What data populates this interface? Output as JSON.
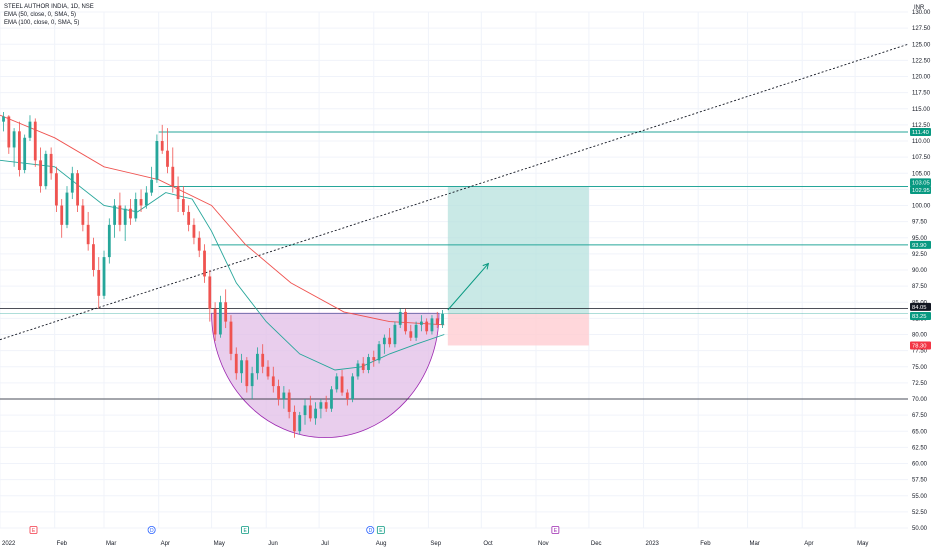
{
  "legend": {
    "title": "STEEL AUTHOR INDIA, 1D, NSE",
    "ema50": "EMA (50, close, 0, SMA, 5)",
    "ema100": "EMA (100, close, 0, SMA, 5)"
  },
  "colors": {
    "up": "#26a69a",
    "down": "#ef5350",
    "ema50": "#26a69a",
    "ema100": "#ef5350",
    "cup_fill": "#e1bee7",
    "profit_zone": "#b2dfdb",
    "loss_zone": "#ffcdd2",
    "level_line": "#26a69a",
    "black_line": "#131722",
    "label_green": "#089981",
    "label_red": "#f23645",
    "label_black": "#131722"
  },
  "chart_data": {
    "type": "candlestick",
    "currency": "INR",
    "x_axis": {
      "labels": [
        "2022",
        "Feb",
        "Mar",
        "Apr",
        "May",
        "Jun",
        "Jul",
        "Aug",
        "Sep",
        "Oct",
        "Nov",
        "Dec",
        "2023",
        "Feb",
        "Mar",
        "Apr",
        "May"
      ],
      "range": [
        "2022-01-01",
        "2023-05-31"
      ]
    },
    "y_axis": {
      "range": [
        50,
        130
      ],
      "ticks": [
        "50.00",
        "52.50",
        "55.00",
        "57.50",
        "60.00",
        "62.50",
        "65.00",
        "67.50",
        "70.00",
        "72.50",
        "75.00",
        "77.50",
        "80.00",
        "82.50",
        "85.00",
        "87.50",
        "90.00",
        "92.50",
        "95.00",
        "97.50",
        "100.00",
        "102.50",
        "105.00",
        "107.50",
        "110.00",
        "112.50",
        "115.00",
        "117.50",
        "120.00",
        "122.50",
        "125.00",
        "127.50",
        "130.00"
      ]
    },
    "candles": [
      {
        "d": "2022-01-03",
        "o": 113.0,
        "h": 114.5,
        "l": 111.5,
        "c": 113.8
      },
      {
        "d": "2022-01-06",
        "o": 113.8,
        "h": 114.0,
        "l": 108.0,
        "c": 109.0
      },
      {
        "d": "2022-01-09",
        "o": 109.0,
        "h": 112.0,
        "l": 106.0,
        "c": 111.5
      },
      {
        "d": "2022-01-12",
        "o": 111.5,
        "h": 113.0,
        "l": 104.5,
        "c": 105.5
      },
      {
        "d": "2022-01-15",
        "o": 105.5,
        "h": 111.0,
        "l": 105.0,
        "c": 110.5
      },
      {
        "d": "2022-01-18",
        "o": 110.5,
        "h": 114.0,
        "l": 110.0,
        "c": 113.0
      },
      {
        "d": "2022-01-21",
        "o": 113.0,
        "h": 113.5,
        "l": 106.0,
        "c": 107.0
      },
      {
        "d": "2022-01-24",
        "o": 107.0,
        "h": 109.0,
        "l": 102.0,
        "c": 103.0
      },
      {
        "d": "2022-01-27",
        "o": 103.0,
        "h": 108.5,
        "l": 102.5,
        "c": 108.0
      },
      {
        "d": "2022-01-30",
        "o": 108.0,
        "h": 109.0,
        "l": 104.0,
        "c": 105.0
      },
      {
        "d": "2022-02-02",
        "o": 105.0,
        "h": 106.0,
        "l": 99.0,
        "c": 100.0
      },
      {
        "d": "2022-02-05",
        "o": 100.0,
        "h": 101.0,
        "l": 95.0,
        "c": 97.0
      },
      {
        "d": "2022-02-08",
        "o": 97.0,
        "h": 103.0,
        "l": 96.5,
        "c": 102.0
      },
      {
        "d": "2022-02-11",
        "o": 102.0,
        "h": 106.0,
        "l": 101.0,
        "c": 105.0
      },
      {
        "d": "2022-02-14",
        "o": 105.0,
        "h": 105.5,
        "l": 99.0,
        "c": 100.0
      },
      {
        "d": "2022-02-17",
        "o": 100.0,
        "h": 101.0,
        "l": 96.0,
        "c": 97.0
      },
      {
        "d": "2022-02-20",
        "o": 97.0,
        "h": 99.0,
        "l": 93.0,
        "c": 94.0
      },
      {
        "d": "2022-02-23",
        "o": 94.0,
        "h": 95.0,
        "l": 89.0,
        "c": 90.0
      },
      {
        "d": "2022-02-26",
        "o": 90.0,
        "h": 92.0,
        "l": 84.0,
        "c": 86.0
      },
      {
        "d": "2022-03-01",
        "o": 86.0,
        "h": 93.0,
        "l": 85.5,
        "c": 92.0
      },
      {
        "d": "2022-03-04",
        "o": 92.0,
        "h": 98.0,
        "l": 91.0,
        "c": 97.0
      },
      {
        "d": "2022-03-07",
        "o": 97.0,
        "h": 101.0,
        "l": 95.0,
        "c": 100.0
      },
      {
        "d": "2022-03-10",
        "o": 100.0,
        "h": 102.0,
        "l": 96.0,
        "c": 97.0
      },
      {
        "d": "2022-03-13",
        "o": 97.0,
        "h": 100.0,
        "l": 94.5,
        "c": 99.5
      },
      {
        "d": "2022-03-16",
        "o": 99.5,
        "h": 101.0,
        "l": 97.0,
        "c": 98.0
      },
      {
        "d": "2022-03-19",
        "o": 98.0,
        "h": 102.0,
        "l": 97.5,
        "c": 101.0
      },
      {
        "d": "2022-03-22",
        "o": 101.0,
        "h": 102.5,
        "l": 99.0,
        "c": 100.0
      },
      {
        "d": "2022-03-25",
        "o": 100.0,
        "h": 103.0,
        "l": 99.5,
        "c": 102.0
      },
      {
        "d": "2022-03-28",
        "o": 102.0,
        "h": 106.0,
        "l": 101.5,
        "c": 104.0
      },
      {
        "d": "2022-03-31",
        "o": 104.0,
        "h": 111.0,
        "l": 103.5,
        "c": 110.0
      },
      {
        "d": "2022-04-03",
        "o": 110.0,
        "h": 112.5,
        "l": 108.0,
        "c": 108.5
      },
      {
        "d": "2022-04-06",
        "o": 108.5,
        "h": 112.0,
        "l": 105.0,
        "c": 106.0
      },
      {
        "d": "2022-04-09",
        "o": 106.0,
        "h": 109.0,
        "l": 102.0,
        "c": 103.0
      },
      {
        "d": "2022-04-12",
        "o": 103.0,
        "h": 104.5,
        "l": 99.0,
        "c": 101.0
      },
      {
        "d": "2022-04-15",
        "o": 101.0,
        "h": 103.0,
        "l": 98.5,
        "c": 99.0
      },
      {
        "d": "2022-04-18",
        "o": 99.0,
        "h": 100.0,
        "l": 96.0,
        "c": 97.0
      },
      {
        "d": "2022-04-21",
        "o": 97.0,
        "h": 98.0,
        "l": 94.0,
        "c": 95.0
      },
      {
        "d": "2022-04-24",
        "o": 95.0,
        "h": 96.0,
        "l": 92.0,
        "c": 93.0
      },
      {
        "d": "2022-04-27",
        "o": 93.0,
        "h": 94.0,
        "l": 88.0,
        "c": 89.0
      },
      {
        "d": "2022-04-30",
        "o": 89.0,
        "h": 90.0,
        "l": 82.0,
        "c": 84.0
      },
      {
        "d": "2022-05-03",
        "o": 84.0,
        "h": 85.0,
        "l": 79.0,
        "c": 80.0
      },
      {
        "d": "2022-05-06",
        "o": 80.0,
        "h": 86.0,
        "l": 79.5,
        "c": 85.0
      },
      {
        "d": "2022-05-09",
        "o": 85.0,
        "h": 87.0,
        "l": 81.0,
        "c": 82.0
      },
      {
        "d": "2022-05-12",
        "o": 82.0,
        "h": 83.0,
        "l": 76.0,
        "c": 77.0
      },
      {
        "d": "2022-05-15",
        "o": 77.0,
        "h": 78.0,
        "l": 73.0,
        "c": 74.0
      },
      {
        "d": "2022-05-18",
        "o": 74.0,
        "h": 77.0,
        "l": 72.5,
        "c": 76.0
      },
      {
        "d": "2022-05-21",
        "o": 76.0,
        "h": 76.5,
        "l": 71.0,
        "c": 72.0
      },
      {
        "d": "2022-05-24",
        "o": 72.0,
        "h": 75.0,
        "l": 70.0,
        "c": 74.0
      },
      {
        "d": "2022-05-27",
        "o": 74.0,
        "h": 78.0,
        "l": 73.0,
        "c": 77.0
      },
      {
        "d": "2022-05-30",
        "o": 77.0,
        "h": 78.5,
        "l": 74.0,
        "c": 75.0
      },
      {
        "d": "2022-06-02",
        "o": 75.0,
        "h": 76.0,
        "l": 73.0,
        "c": 73.5
      },
      {
        "d": "2022-06-05",
        "o": 73.5,
        "h": 75.0,
        "l": 71.0,
        "c": 72.0
      },
      {
        "d": "2022-06-08",
        "o": 72.0,
        "h": 73.0,
        "l": 69.0,
        "c": 70.0
      },
      {
        "d": "2022-06-11",
        "o": 70.0,
        "h": 72.0,
        "l": 68.5,
        "c": 71.0
      },
      {
        "d": "2022-06-14",
        "o": 71.0,
        "h": 71.5,
        "l": 67.0,
        "c": 68.0
      },
      {
        "d": "2022-06-17",
        "o": 68.0,
        "h": 69.0,
        "l": 64.0,
        "c": 65.0
      },
      {
        "d": "2022-06-20",
        "o": 65.0,
        "h": 68.0,
        "l": 64.5,
        "c": 67.5
      },
      {
        "d": "2022-06-23",
        "o": 67.5,
        "h": 70.0,
        "l": 66.0,
        "c": 69.0
      },
      {
        "d": "2022-06-26",
        "o": 69.0,
        "h": 70.5,
        "l": 66.5,
        "c": 67.0
      },
      {
        "d": "2022-06-29",
        "o": 67.0,
        "h": 69.5,
        "l": 66.0,
        "c": 68.5
      },
      {
        "d": "2022-07-02",
        "o": 68.5,
        "h": 70.0,
        "l": 67.0,
        "c": 69.5
      },
      {
        "d": "2022-07-05",
        "o": 69.5,
        "h": 70.5,
        "l": 68.0,
        "c": 68.5
      },
      {
        "d": "2022-07-08",
        "o": 68.5,
        "h": 72.0,
        "l": 68.0,
        "c": 71.5
      },
      {
        "d": "2022-07-11",
        "o": 71.5,
        "h": 74.0,
        "l": 71.0,
        "c": 73.5
      },
      {
        "d": "2022-07-14",
        "o": 73.5,
        "h": 74.5,
        "l": 70.5,
        "c": 71.0
      },
      {
        "d": "2022-07-17",
        "o": 71.0,
        "h": 71.5,
        "l": 69.0,
        "c": 70.0
      },
      {
        "d": "2022-07-20",
        "o": 70.0,
        "h": 74.0,
        "l": 69.5,
        "c": 73.5
      },
      {
        "d": "2022-07-23",
        "o": 73.5,
        "h": 76.0,
        "l": 73.0,
        "c": 75.5
      },
      {
        "d": "2022-07-26",
        "o": 75.5,
        "h": 76.5,
        "l": 74.0,
        "c": 74.5
      },
      {
        "d": "2022-07-29",
        "o": 74.5,
        "h": 77.0,
        "l": 74.0,
        "c": 76.5
      },
      {
        "d": "2022-08-01",
        "o": 76.5,
        "h": 77.5,
        "l": 75.0,
        "c": 76.0
      },
      {
        "d": "2022-08-04",
        "o": 76.0,
        "h": 79.0,
        "l": 75.5,
        "c": 78.5
      },
      {
        "d": "2022-08-07",
        "o": 78.5,
        "h": 80.0,
        "l": 77.0,
        "c": 79.5
      },
      {
        "d": "2022-08-10",
        "o": 79.5,
        "h": 81.0,
        "l": 78.0,
        "c": 78.5
      },
      {
        "d": "2022-08-13",
        "o": 78.5,
        "h": 82.0,
        "l": 78.0,
        "c": 81.5
      },
      {
        "d": "2022-08-16",
        "o": 81.5,
        "h": 84.0,
        "l": 81.0,
        "c": 83.5
      },
      {
        "d": "2022-08-19",
        "o": 83.5,
        "h": 84.0,
        "l": 80.0,
        "c": 80.5
      },
      {
        "d": "2022-08-22",
        "o": 80.5,
        "h": 81.5,
        "l": 79.0,
        "c": 79.5
      },
      {
        "d": "2022-08-25",
        "o": 79.5,
        "h": 82.0,
        "l": 79.0,
        "c": 81.5
      },
      {
        "d": "2022-08-28",
        "o": 81.5,
        "h": 83.0,
        "l": 80.5,
        "c": 82.0
      },
      {
        "d": "2022-08-31",
        "o": 82.0,
        "h": 82.5,
        "l": 80.0,
        "c": 80.5
      },
      {
        "d": "2022-09-03",
        "o": 80.5,
        "h": 83.0,
        "l": 80.0,
        "c": 82.5
      },
      {
        "d": "2022-09-06",
        "o": 82.5,
        "h": 83.5,
        "l": 81.0,
        "c": 81.5
      },
      {
        "d": "2022-09-09",
        "o": 81.5,
        "h": 83.8,
        "l": 81.0,
        "c": 83.2
      }
    ],
    "ema50": [
      [
        "2022-01-01",
        107.0
      ],
      [
        "2022-02-01",
        106.0
      ],
      [
        "2022-03-01",
        100.0
      ],
      [
        "2022-03-20",
        99.0
      ],
      [
        "2022-04-05",
        102.0
      ],
      [
        "2022-04-20",
        101.0
      ],
      [
        "2022-05-01",
        96.0
      ],
      [
        "2022-05-15",
        88.0
      ],
      [
        "2022-06-01",
        82.0
      ],
      [
        "2022-06-20",
        77.0
      ],
      [
        "2022-07-10",
        74.5
      ],
      [
        "2022-07-25",
        75.0
      ],
      [
        "2022-08-10",
        77.0
      ],
      [
        "2022-08-25",
        78.5
      ],
      [
        "2022-09-10",
        80.0
      ]
    ],
    "ema100": [
      [
        "2022-01-01",
        114.0
      ],
      [
        "2022-02-01",
        110.5
      ],
      [
        "2022-03-01",
        106.0
      ],
      [
        "2022-04-01",
        104.0
      ],
      [
        "2022-05-01",
        100.0
      ],
      [
        "2022-05-20",
        94.0
      ],
      [
        "2022-06-15",
        88.0
      ],
      [
        "2022-07-15",
        83.5
      ],
      [
        "2022-08-10",
        82.0
      ],
      [
        "2022-09-10",
        81.5
      ]
    ],
    "annotations": {
      "levels": [
        {
          "price": 111.4,
          "label": "111.40",
          "color": "green"
        },
        {
          "price": 103.05,
          "label": "103.05",
          "color": "green"
        },
        {
          "price": 102.95,
          "label": "102.95",
          "color": "green"
        },
        {
          "price": 93.9,
          "label": "93.90",
          "color": "green"
        },
        {
          "price": 84.05,
          "label": "84.05",
          "color": "black"
        },
        {
          "price": 83.25,
          "label": "83.25",
          "color": "green"
        },
        {
          "price": 78.3,
          "label": "78.30",
          "color": "red"
        }
      ],
      "black_lines": [
        84.05,
        70.0
      ],
      "trendline": {
        "from": [
          "2022-01-01",
          79.2
        ],
        "to": [
          "2023-05-31",
          125.0
        ]
      },
      "cup_top_price": 83.3,
      "cup_bottom_price": 64.0,
      "cup_span": [
        "2022-05-01",
        "2022-09-07"
      ],
      "long_position": {
        "start": "2022-09-12",
        "end": "2022-12-01",
        "entry": 83.25,
        "target": 102.95,
        "stop": 78.3
      },
      "arrow": {
        "from": [
          "2022-09-12",
          83.8
        ],
        "to": [
          "2022-10-05",
          91.0
        ]
      },
      "events": [
        {
          "date": "2022-01-20",
          "letter": "E",
          "color": "red"
        },
        {
          "date": "2022-03-28",
          "letter": "D",
          "color": "blue"
        },
        {
          "date": "2022-05-20",
          "letter": "E",
          "color": "green"
        },
        {
          "date": "2022-07-30",
          "letter": "D",
          "color": "blue"
        },
        {
          "date": "2022-08-05",
          "letter": "E",
          "color": "green"
        },
        {
          "date": "2022-11-12",
          "letter": "E",
          "color": "gray"
        }
      ]
    }
  }
}
